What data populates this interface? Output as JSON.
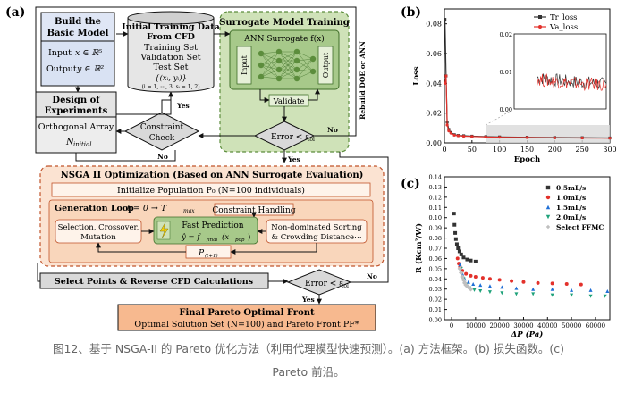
{
  "panel_a": {
    "label": "(a)",
    "build_model": {
      "title1": "Build the",
      "title2": "Basic Model",
      "input_label": "Input",
      "input_expr": "x ∈ ℝ⁵",
      "output_label": "Output",
      "output_expr": "y ∈ ℝ²"
    },
    "doe": {
      "title1": "Design of",
      "title2": "Experiments",
      "method": "Orthogonal Array",
      "n_initial": "N",
      "n_initial_sub": "initial"
    },
    "training_data": {
      "title1": "Initial Training Data",
      "title2": "From CFD",
      "l1": "Training Set",
      "l2": "Validation Set",
      "l3": "Test Set",
      "l4": "{(xᵢ, yᵢ)}",
      "l5": "(i = 1, ⋯, 3, sᵢ = 1, 2)"
    },
    "surrogate": {
      "title": "Surrogate Model Training",
      "subtitle": "ANN Surrogate f(x)",
      "input": "Input",
      "output": "Output",
      "validate": "Validate",
      "side": "Rebuild DOE or ANN"
    },
    "constraint": {
      "l1": "Constraint",
      "l2": "Check"
    },
    "error1": "Error < ε",
    "error_sub": "tol",
    "yes": "Yes",
    "no": "No",
    "nsga": {
      "title": "NSGA II Optimization (Based on ANN Surrogate Evaluation)",
      "init": "Initialize Population P₀ (N=100 individuals)",
      "loop_label": "Generation Loop",
      "loop_expr": "t = 0 → T",
      "loop_sub": "max",
      "constraint_handling": "Constraint Handling",
      "sel1": "Selection, Crossover,",
      "sel2": "Mutation",
      "pred1": "Fast Prediction",
      "pred2": "ŷ = f",
      "pred2_sub": "final",
      "pred2_tail": "(x",
      "pred2_tail_sub": "pop",
      "sort1": "Non-dominated Sorting",
      "sort2": "& Crowding Distance⋯",
      "pt1": "P",
      "pt1_sub": "(t+1)"
    },
    "select_points": "Select Points & Reverse CFD Calculations",
    "error2": "Error < ε",
    "final": {
      "title": "Final Pareto Optimal Front",
      "desc": "Optimal Solution Set (N=100) and Pareto Front PF*"
    }
  },
  "panel_b": {
    "label": "(b)",
    "xlabel": "Epoch",
    "ylabel": "Loss"
  },
  "panel_c": {
    "label": "(c)",
    "xlabel": "ΔP (Pa)",
    "ylabel": "R (Kcm²/W)"
  },
  "caption": {
    "line1": "图12、基于 NSGA-II 的 Pareto 优化方法（利用代理模型快速预测）。(a) 方法框架。(b) 损失函数。(c)",
    "line2": "Pareto 前沿。"
  },
  "chart_data": [
    {
      "type": "line",
      "title": "",
      "xlabel": "Epoch",
      "ylabel": "Loss",
      "xlim": [
        0,
        300
      ],
      "ylim": [
        0,
        0.09
      ],
      "xticks": [
        0,
        50,
        100,
        150,
        200,
        250,
        300
      ],
      "yticks": [
        0.0,
        0.02,
        0.04,
        0.06,
        0.08
      ],
      "legend": "top-right",
      "series": [
        {
          "name": "Tr_loss",
          "color": "#333333",
          "marker": "square",
          "x": [
            1,
            3,
            5,
            8,
            12,
            18,
            25,
            35,
            50,
            75,
            100,
            150,
            200,
            250,
            300
          ],
          "y": [
            0.083,
            0.045,
            0.014,
            0.009,
            0.007,
            0.0055,
            0.005,
            0.0048,
            0.0045,
            0.0042,
            0.004,
            0.0038,
            0.0036,
            0.0035,
            0.0033
          ]
        },
        {
          "name": "Va_loss",
          "color": "#e3312b",
          "marker": "circle",
          "x": [
            1,
            3,
            5,
            8,
            12,
            18,
            25,
            35,
            50,
            75,
            100,
            150,
            200,
            250,
            300
          ],
          "y": [
            0.04,
            0.045,
            0.012,
            0.008,
            0.0065,
            0.0052,
            0.0048,
            0.0045,
            0.0043,
            0.004,
            0.0038,
            0.0036,
            0.0034,
            0.0033,
            0.0032
          ]
        }
      ],
      "inset": {
        "xlim": [
          0,
          300
        ],
        "ylim": [
          0,
          0.02
        ],
        "yticks": [
          0.0,
          0.01,
          0.02
        ],
        "highlight_x": [
          75,
          300
        ]
      }
    },
    {
      "type": "scatter",
      "title": "",
      "xlabel": "ΔP (Pa)",
      "ylabel": "R (Kcm²/W)",
      "xlim": [
        -3000,
        66000
      ],
      "ylim": [
        0.0,
        0.14
      ],
      "xticks": [
        0,
        10000,
        20000,
        30000,
        40000,
        50000,
        60000
      ],
      "yticks": [
        0.0,
        0.01,
        0.02,
        0.03,
        0.04,
        0.05,
        0.06,
        0.07,
        0.08,
        0.09,
        0.1,
        0.11,
        0.12,
        0.13,
        0.14
      ],
      "legend": "top-right",
      "series": [
        {
          "name": "0.5mL/s",
          "color": "#333333",
          "marker": "square",
          "x": [
            1000,
            1200,
            1500,
            1800,
            2200,
            2700,
            3300,
            4000,
            5000,
            6500,
            8000,
            10000
          ],
          "y": [
            0.104,
            0.093,
            0.085,
            0.079,
            0.074,
            0.07,
            0.067,
            0.064,
            0.061,
            0.059,
            0.058,
            0.057
          ]
        },
        {
          "name": "1.0mL/s",
          "color": "#e3312b",
          "marker": "circle",
          "x": [
            2500,
            3000,
            3500,
            4500,
            6000,
            8000,
            10000,
            13000,
            16000,
            20000,
            25000,
            30000,
            36000,
            42000,
            48000,
            54000
          ],
          "y": [
            0.06,
            0.055,
            0.052,
            0.048,
            0.045,
            0.043,
            0.042,
            0.041,
            0.04,
            0.039,
            0.038,
            0.037,
            0.036,
            0.0355,
            0.035,
            0.0345
          ]
        },
        {
          "name": "1.5mL/s",
          "color": "#1f6fd6",
          "marker": "triangle-up",
          "x": [
            3500,
            4500,
            5500,
            7000,
            9000,
            12000,
            16000,
            21000,
            27000,
            34000,
            42000,
            50000,
            58000,
            65000
          ],
          "y": [
            0.054,
            0.045,
            0.04,
            0.037,
            0.035,
            0.034,
            0.033,
            0.032,
            0.031,
            0.03,
            0.03,
            0.029,
            0.029,
            0.028
          ]
        },
        {
          "name": "2.0mL/s",
          "color": "#1ea27a",
          "marker": "triangle-down",
          "x": [
            4000,
            5000,
            6000,
            7500,
            9500,
            12000,
            16000,
            21000,
            27000,
            34000,
            42000,
            50000,
            58000,
            64000
          ],
          "y": [
            0.05,
            0.04,
            0.034,
            0.031,
            0.029,
            0.028,
            0.027,
            0.026,
            0.025,
            0.025,
            0.024,
            0.024,
            0.023,
            0.023
          ]
        },
        {
          "name": "Select FFMC",
          "color": "#bfbfbf",
          "marker": "diamond",
          "x": [
            3500,
            4000,
            4500,
            5000,
            5500,
            6000,
            7000,
            8000
          ],
          "y": [
            0.05,
            0.046,
            0.042,
            0.039,
            0.036,
            0.034,
            0.032,
            0.03
          ]
        }
      ]
    }
  ]
}
